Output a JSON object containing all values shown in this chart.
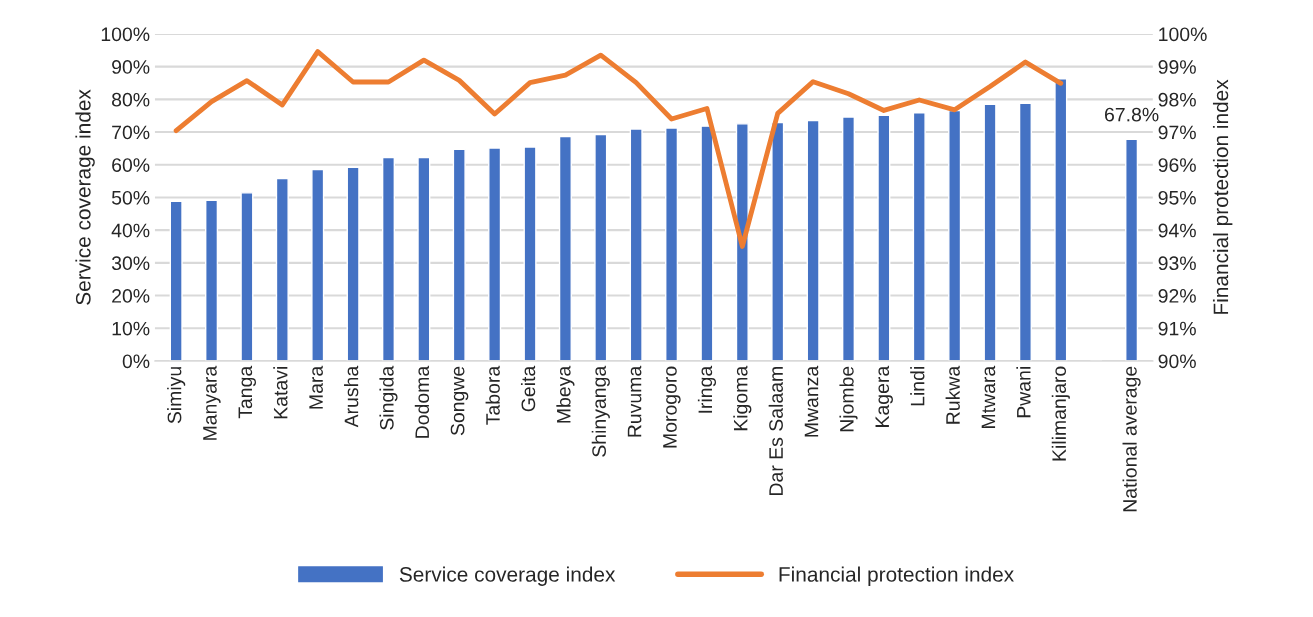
{
  "chart_data": {
    "type": "bar",
    "ylabel": "Service coverage index",
    "y2label": "Financial protection index",
    "categories": [
      "Simiyu",
      "Manyara",
      "Tanga",
      "Katavi",
      "Mara",
      "Arusha",
      "Singida",
      "Dodoma",
      "Songwe",
      "Tabora",
      "Geita",
      "Mbeya",
      "Shinyanga",
      "Ruvuma",
      "Morogoro",
      "Iringa",
      "Kigoma",
      "Dar Es Salaam",
      "Mwanza",
      "Njombe",
      "Kagera",
      "Lindi",
      "Rukwa",
      "Mtwara",
      "Pwani",
      "Kilimanjaro",
      null,
      "National average"
    ],
    "series": [
      {
        "name": "Service coverage index",
        "color": "#4472c4",
        "values": [
          48.8,
          49.1,
          51.4,
          55.8,
          58.5,
          59.2,
          62.2,
          62.2,
          64.7,
          65.1,
          65.4,
          68.6,
          69.2,
          70.9,
          71.2,
          71.8,
          72.5,
          72.9,
          73.5,
          74.6,
          75.1,
          75.9,
          76.6,
          78.5,
          78.8,
          86.3,
          null,
          67.8
        ],
        "value_labels": [
          null,
          null,
          null,
          null,
          null,
          null,
          null,
          null,
          null,
          null,
          null,
          null,
          null,
          null,
          null,
          null,
          null,
          null,
          null,
          null,
          null,
          null,
          null,
          null,
          null,
          null,
          null,
          "67.8%"
        ]
      },
      {
        "name": "Financial protection index",
        "type": "line",
        "axis": "y2",
        "color": "#ed7d31",
        "values": [
          97.04,
          97.93,
          98.57,
          97.83,
          99.46,
          98.53,
          98.53,
          99.2,
          98.58,
          97.55,
          98.51,
          98.74,
          99.35,
          98.51,
          97.4,
          97.72,
          93.5,
          97.57,
          98.54,
          98.17,
          97.66,
          97.98,
          97.68,
          98.39,
          99.14,
          98.49,
          null,
          null
        ]
      }
    ],
    "ylim": [
      0,
      100
    ],
    "yticks": [
      {
        "value": 0,
        "label": "0%"
      },
      {
        "value": 10,
        "label": "10%"
      },
      {
        "value": 20,
        "label": "20%"
      },
      {
        "value": 30,
        "label": "30%"
      },
      {
        "value": 40,
        "label": "40%"
      },
      {
        "value": 50,
        "label": "50%"
      },
      {
        "value": 60,
        "label": "60%"
      },
      {
        "value": 70,
        "label": "70%"
      },
      {
        "value": 80,
        "label": "80%"
      },
      {
        "value": 90,
        "label": "90%"
      },
      {
        "value": 100,
        "label": "100%"
      }
    ],
    "y2lim": [
      90,
      100
    ],
    "y2ticks": [
      {
        "value": 90,
        "label": "90%"
      },
      {
        "value": 91,
        "label": "91%"
      },
      {
        "value": 92,
        "label": "92%"
      },
      {
        "value": 93,
        "label": "93%"
      },
      {
        "value": 94,
        "label": "94%"
      },
      {
        "value": 95,
        "label": "95%"
      },
      {
        "value": 96,
        "label": "96%"
      },
      {
        "value": 97,
        "label": "97%"
      },
      {
        "value": 98,
        "label": "98%"
      },
      {
        "value": 99,
        "label": "99%"
      },
      {
        "value": 100,
        "label": "100%"
      }
    ],
    "grid": "y",
    "legend": "bottom"
  }
}
